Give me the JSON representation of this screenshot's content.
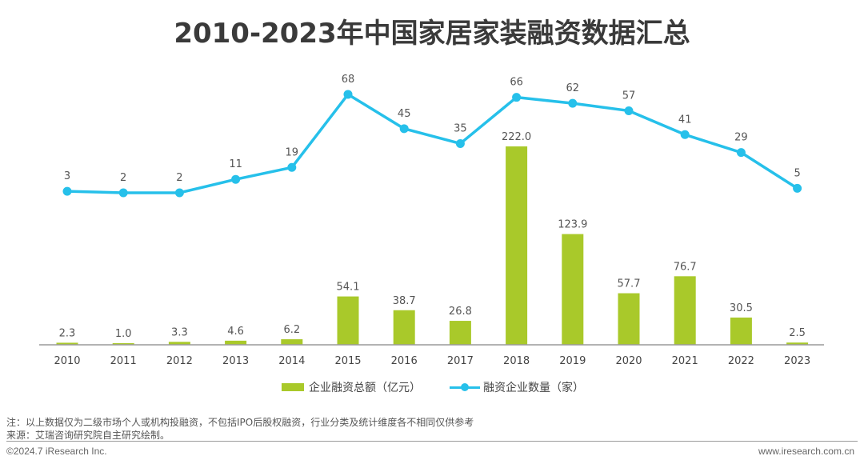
{
  "title": "2010-2023年中国家居家装融资数据汇总",
  "chart_data": {
    "type": "bar+line",
    "title": "2010-2023年中国家居家装融资数据汇总",
    "xlabel": "",
    "ylabel": "",
    "categories": [
      "2010",
      "2011",
      "2012",
      "2013",
      "2014",
      "2015",
      "2016",
      "2017",
      "2018",
      "2019",
      "2020",
      "2021",
      "2022",
      "2023"
    ],
    "series": [
      {
        "name": "企业融资总额（亿元）",
        "type": "bar",
        "color": "#a9c92a",
        "values": [
          2.3,
          1.0,
          3.3,
          4.6,
          6.2,
          54.1,
          38.7,
          26.8,
          222.0,
          123.9,
          57.7,
          76.7,
          30.5,
          2.5
        ],
        "labels": [
          "2.3",
          "1.0",
          "3.3",
          "4.6",
          "6.2",
          "54.1",
          "38.7",
          "26.8",
          "222.0",
          "123.9",
          "57.7",
          "76.7",
          "30.5",
          "2.5"
        ]
      },
      {
        "name": "融资企业数量（家）",
        "type": "line",
        "color": "#26c0ea",
        "values": [
          3,
          2,
          2,
          11,
          19,
          68,
          45,
          35,
          66,
          62,
          57,
          41,
          29,
          5
        ],
        "labels": [
          "3",
          "2",
          "2",
          "11",
          "19",
          "68",
          "45",
          "35",
          "66",
          "62",
          "57",
          "41",
          "29",
          "5"
        ]
      }
    ],
    "grid": false,
    "legend": "bottom-center"
  },
  "legend": {
    "bar_label": "企业融资总额（亿元）",
    "line_label": "融资企业数量（家）"
  },
  "footer": {
    "note": "注：以上数据仅为二级市场个人或机构投融资，不包括IPO后股权融资，行业分类及统计维度各不相同仅供参考",
    "source": "来源：艾瑞咨询研究院自主研究绘制。",
    "copyright": "©2024.7 iResearch Inc.",
    "website": "www.iresearch.com.cn"
  },
  "colors": {
    "bar": "#a9c92a",
    "line": "#26c0ea",
    "axis": "#9a9a9a",
    "text": "#444444"
  }
}
